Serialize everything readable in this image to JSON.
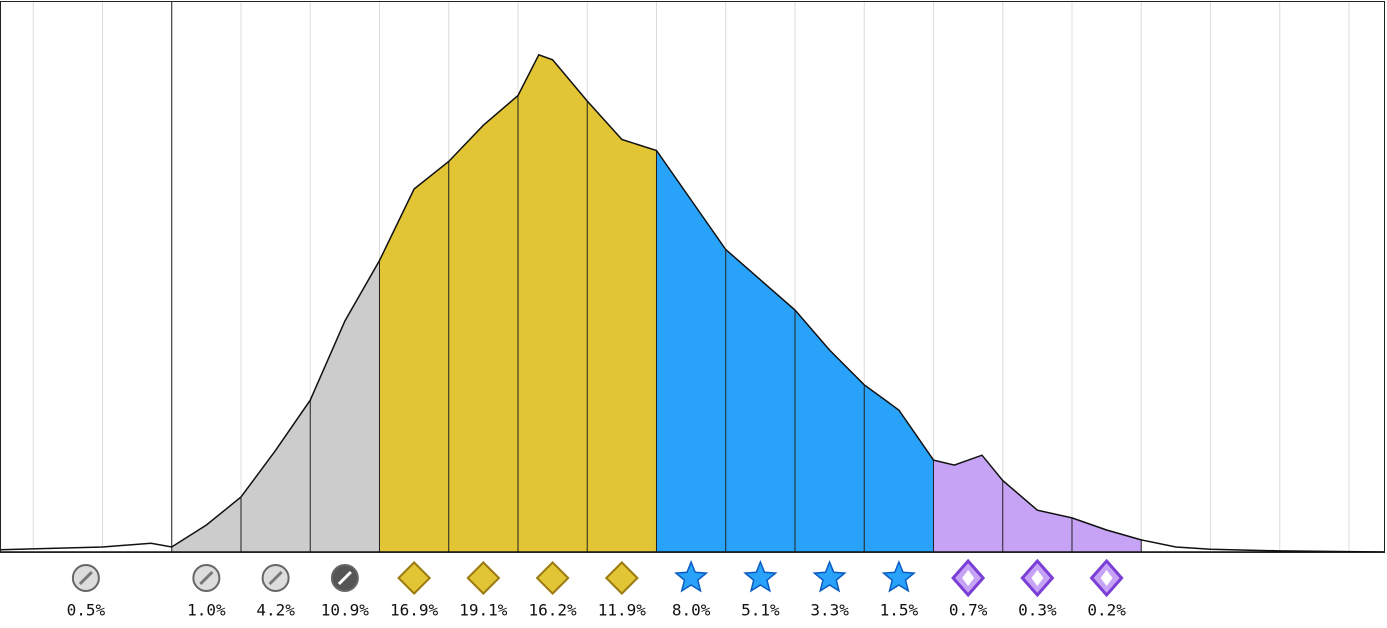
{
  "chart_data": {
    "type": "area",
    "values": [
      0.5,
      1.0,
      4.2,
      10.9,
      16.9,
      19.1,
      16.2,
      11.9,
      8.0,
      5.1,
      3.3,
      1.5,
      0.7,
      0.3,
      0.2
    ],
    "value_labels": [
      "0.5%",
      "1.0%",
      "4.2%",
      "10.9%",
      "16.9%",
      "19.1%",
      "16.2%",
      "11.9%",
      "8.0%",
      "5.1%",
      "3.3%",
      "1.5%",
      "0.7%",
      "0.3%",
      "0.2%"
    ],
    "colors": [
      "#ffffff",
      "#cccccc",
      "#cccccc",
      "#cccccc",
      "#e2c535",
      "#e2c535",
      "#e2c535",
      "#e2c535",
      "#29a3fa",
      "#29a3fa",
      "#29a3fa",
      "#29a3fa",
      "#c7a3f5",
      "#c7a3f5",
      "#c7a3f5"
    ],
    "curve": {
      "x": [
        -2.48,
        -1,
        -0.3,
        0,
        0.5,
        1,
        1.5,
        2,
        2.5,
        3,
        3.5,
        4,
        4.5,
        5,
        5.3,
        5.5,
        6,
        6.5,
        7,
        7.5,
        8,
        8.5,
        9,
        9.5,
        10,
        10.5,
        11,
        11.3,
        11.7,
        12,
        12.5,
        13,
        13.5,
        14,
        14.5,
        15,
        16,
        17.52
      ],
      "y": [
        0.4,
        0.9,
        1.6,
        0.9,
        4.9,
        10,
        18.5,
        27.6,
        42,
        53,
        66,
        71,
        77.6,
        83,
        90.4,
        89.5,
        82,
        75,
        73,
        64,
        55,
        49.5,
        44,
        36.7,
        30.4,
        25.8,
        16.7,
        15.8,
        17.6,
        13,
        7.6,
        6.2,
        4,
        2.2,
        0.9,
        0.5,
        0.2,
        0
      ]
    },
    "xlim": [
      -2.48,
      17.52
    ],
    "ylim": [
      0,
      100
    ],
    "xticks": [
      -2,
      -1,
      0,
      1,
      2,
      3,
      4,
      5,
      6,
      7,
      8,
      9,
      10,
      11,
      12,
      13,
      14,
      15,
      16,
      17
    ],
    "grid": true
  }
}
